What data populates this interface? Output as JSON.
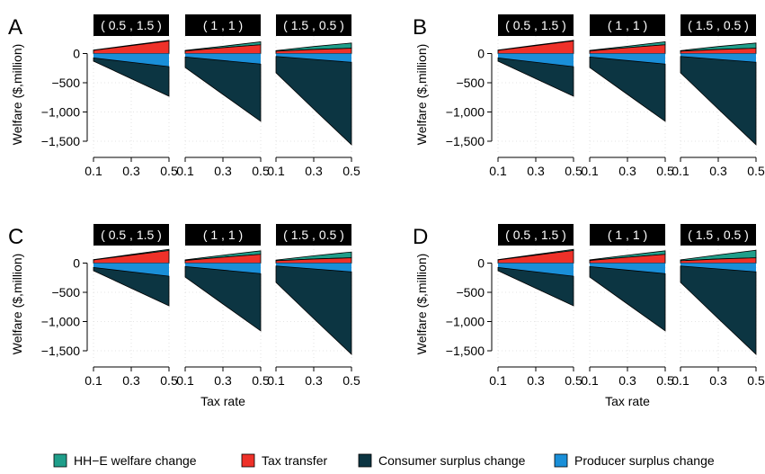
{
  "x_axis_title": "Tax rate",
  "y_axis_title": "Welfare ($,million)",
  "x_ticks": [
    "0.1",
    "0.3",
    "0.5"
  ],
  "y_ticks": [
    "0",
    "−500",
    "−1,000",
    "−1,500"
  ],
  "colors": {
    "hh_e": "#1f9e8a",
    "tax": "#ee3129",
    "consumer": "#0c3542",
    "producer": "#1a8fd8",
    "strip_bg": "#000000",
    "strip_text": "#ffffff"
  },
  "legend": [
    {
      "key": "hh_e",
      "label": "HH−E welfare change"
    },
    {
      "key": "tax",
      "label": "Tax transfer"
    },
    {
      "key": "consumer",
      "label": "Consumer surplus change"
    },
    {
      "key": "producer",
      "label": "Producer surplus change"
    }
  ],
  "chart_data": [
    {
      "type": "area",
      "panel_label": "A",
      "x": [
        0.1,
        0.3,
        0.5
      ],
      "xlim": [
        0.1,
        0.5
      ],
      "ylim": [
        -1700,
        300
      ],
      "facets": [
        {
          "strip": "( 0.5 , 1.5 )",
          "series": {
            "hh_e": [
              5,
              8,
              10
            ],
            "tax": [
              55,
              135,
              215
            ],
            "consumer": [
              -130,
              -430,
              -730
            ],
            "producer": [
              -75,
              -150,
              -225
            ]
          }
        },
        {
          "strip": "( 1 , 1 )",
          "series": {
            "hh_e": [
              8,
              25,
              50
            ],
            "tax": [
              45,
              100,
              150
            ],
            "consumer": [
              -240,
              -700,
              -1160
            ],
            "producer": [
              -60,
              -120,
              -180
            ]
          }
        },
        {
          "strip": "( 1.5 , 0.5 )",
          "series": {
            "hh_e": [
              10,
              50,
              90
            ],
            "tax": [
              40,
              70,
              90
            ],
            "consumer": [
              -330,
              -950,
              -1560
            ],
            "producer": [
              -50,
              -100,
              -150
            ]
          }
        }
      ]
    },
    {
      "type": "area",
      "panel_label": "B",
      "x": [
        0.1,
        0.3,
        0.5
      ],
      "xlim": [
        0.1,
        0.5
      ],
      "ylim": [
        -1700,
        300
      ],
      "facets": [
        {
          "strip": "( 0.5 , 1.5 )",
          "series": {
            "hh_e": [
              5,
              8,
              10
            ],
            "tax": [
              55,
              135,
              215
            ],
            "consumer": [
              -130,
              -430,
              -730
            ],
            "producer": [
              -75,
              -150,
              -225
            ]
          }
        },
        {
          "strip": "( 1 , 1 )",
          "series": {
            "hh_e": [
              8,
              25,
              50
            ],
            "tax": [
              45,
              100,
              150
            ],
            "consumer": [
              -240,
              -700,
              -1160
            ],
            "producer": [
              -60,
              -120,
              -180
            ]
          }
        },
        {
          "strip": "( 1.5 , 0.5 )",
          "series": {
            "hh_e": [
              10,
              50,
              90
            ],
            "tax": [
              40,
              70,
              90
            ],
            "consumer": [
              -330,
              -950,
              -1560
            ],
            "producer": [
              -50,
              -100,
              -150
            ]
          }
        }
      ]
    },
    {
      "type": "area",
      "panel_label": "C",
      "x": [
        0.1,
        0.3,
        0.5
      ],
      "xlim": [
        0.1,
        0.5
      ],
      "ylim": [
        -1700,
        300
      ],
      "facets": [
        {
          "strip": "( 0.5 , 1.5 )",
          "series": {
            "hh_e": [
              5,
              12,
              20
            ],
            "tax": [
              55,
              135,
              215
            ],
            "consumer": [
              -130,
              -430,
              -730
            ],
            "producer": [
              -75,
              -150,
              -225
            ]
          }
        },
        {
          "strip": "( 1 , 1 )",
          "series": {
            "hh_e": [
              10,
              35,
              60
            ],
            "tax": [
              45,
              100,
              150
            ],
            "consumer": [
              -240,
              -700,
              -1160
            ],
            "producer": [
              -60,
              -120,
              -180
            ]
          }
        },
        {
          "strip": "( 1.5 , 0.5 )",
          "series": {
            "hh_e": [
              12,
              55,
              100
            ],
            "tax": [
              40,
              70,
              90
            ],
            "consumer": [
              -330,
              -950,
              -1560
            ],
            "producer": [
              -50,
              -100,
              -150
            ]
          }
        }
      ]
    },
    {
      "type": "area",
      "panel_label": "D",
      "x": [
        0.1,
        0.3,
        0.5
      ],
      "xlim": [
        0.1,
        0.5
      ],
      "ylim": [
        -1700,
        300
      ],
      "facets": [
        {
          "strip": "( 0.5 , 1.5 )",
          "series": {
            "hh_e": [
              5,
              12,
              20
            ],
            "tax": [
              55,
              135,
              215
            ],
            "consumer": [
              -130,
              -430,
              -730
            ],
            "producer": [
              -75,
              -150,
              -225
            ]
          }
        },
        {
          "strip": "( 1 , 1 )",
          "series": {
            "hh_e": [
              10,
              35,
              60
            ],
            "tax": [
              45,
              100,
              150
            ],
            "consumer": [
              -240,
              -700,
              -1160
            ],
            "producer": [
              -60,
              -120,
              -180
            ]
          }
        },
        {
          "strip": "( 1.5 , 0.5 )",
          "series": {
            "hh_e": [
              15,
              70,
              130
            ],
            "tax": [
              40,
              70,
              90
            ],
            "consumer": [
              -330,
              -950,
              -1560
            ],
            "producer": [
              -50,
              -100,
              -150
            ]
          }
        }
      ]
    }
  ]
}
